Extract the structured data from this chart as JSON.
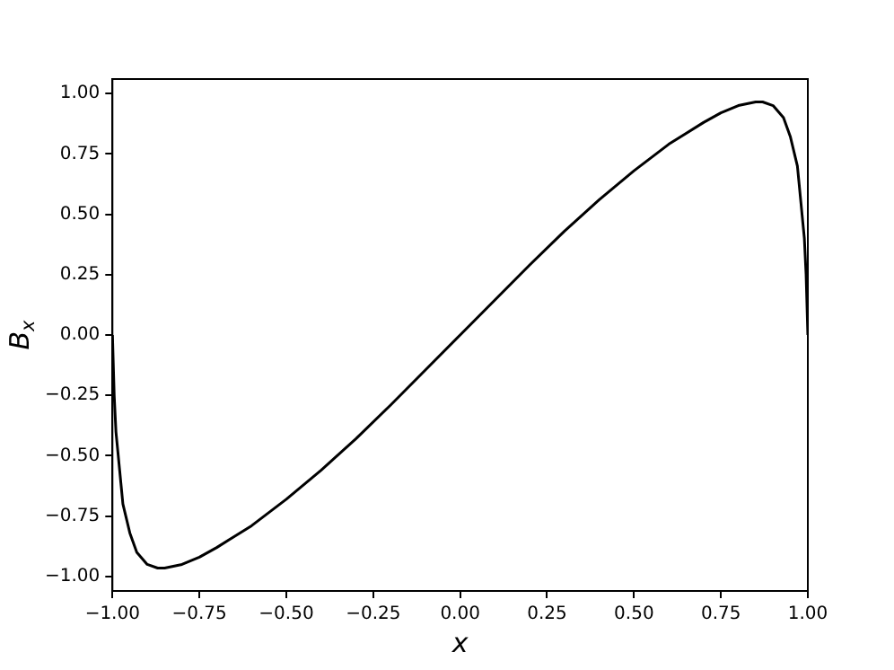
{
  "chart_data": {
    "type": "line",
    "xlabel": "x",
    "ylabel": "B$_{x}$",
    "x": [
      -1,
      -0.995,
      -0.99,
      -0.98,
      -0.97,
      -0.95,
      -0.93,
      -0.9,
      -0.87,
      -0.85,
      -0.8,
      -0.75,
      -0.7,
      -0.6,
      -0.5,
      -0.4,
      -0.3,
      -0.2,
      -0.1,
      0,
      0.1,
      0.2,
      0.3,
      0.4,
      0.5,
      0.6,
      0.7,
      0.75,
      0.8,
      0.85,
      0.87,
      0.9,
      0.93,
      0.95,
      0.97,
      0.98,
      0.99,
      0.995,
      1
    ],
    "series": [
      {
        "color": "#000000",
        "values": [
          0,
          -0.25,
          -0.4,
          -0.55,
          -0.7,
          -0.82,
          -0.9,
          -0.95,
          -0.965,
          -0.965,
          -0.95,
          -0.92,
          -0.88,
          -0.79,
          -0.68,
          -0.56,
          -0.43,
          -0.29,
          -0.145,
          0,
          0.145,
          0.29,
          0.43,
          0.56,
          0.68,
          0.79,
          0.88,
          0.92,
          0.95,
          0.965,
          0.965,
          0.95,
          0.9,
          0.82,
          0.7,
          0.55,
          0.4,
          0.25,
          0
        ]
      }
    ],
    "xlim": [
      -1,
      1
    ],
    "xticks": [
      {
        "value": -1,
        "label": "−1.00"
      },
      {
        "value": -0.75,
        "label": "−0.75"
      },
      {
        "value": -0.5,
        "label": "−0.50"
      },
      {
        "value": -0.25,
        "label": "−0.25"
      },
      {
        "value": 0,
        "label": "0.00"
      },
      {
        "value": 0.25,
        "label": "0.25"
      },
      {
        "value": 0.5,
        "label": "0.50"
      },
      {
        "value": 0.75,
        "label": "0.75"
      },
      {
        "value": 1,
        "label": "1.00"
      }
    ],
    "ylim": [
      -1.06,
      1.06
    ],
    "yticks": [
      {
        "value": -1,
        "label": "−1.00"
      },
      {
        "value": -0.75,
        "label": "−0.75"
      },
      {
        "value": -0.5,
        "label": "−0.50"
      },
      {
        "value": -0.25,
        "label": "−0.25"
      },
      {
        "value": 0,
        "label": "0.00"
      },
      {
        "value": 0.25,
        "label": "0.25"
      },
      {
        "value": 0.5,
        "label": "0.50"
      },
      {
        "value": 0.75,
        "label": "0.75"
      },
      {
        "value": 1,
        "label": "1.00"
      }
    ],
    "grid": false,
    "legend": false,
    "marker": "none",
    "line_style": "solid"
  }
}
